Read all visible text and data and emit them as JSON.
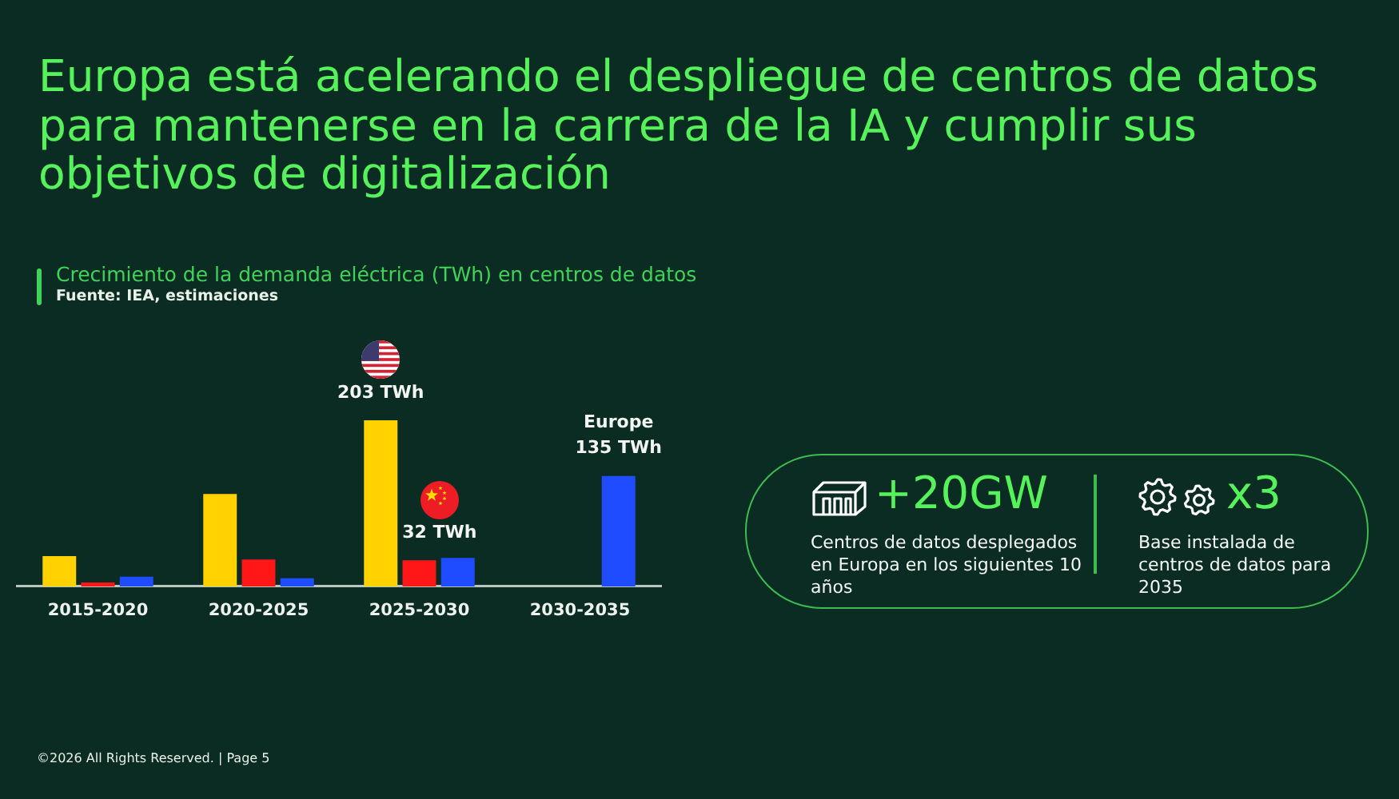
{
  "chart_data": {
    "type": "bar",
    "title": "Europa está acelerando el despliegue de centros de datos para mantenerse en la carrera de la IA y cumplir sus objetivos de digitalización",
    "subtitle": "Crecimiento de la demanda eléctrica (TWh) en centros de datos",
    "annotations": [
      "Fuente: IEA, estimaciones",
      "+20GW",
      "Centros de datos desplegados en Europa en los siguientes 10 años",
      "x3",
      "Base instalada de centros de datos para 2035",
      "©2026 All Rights Reserved. | Page 5"
    ],
    "categories": [
      "2015-2020",
      "2020-2025",
      "2025-2030",
      "2030-2035"
    ],
    "series": [
      {
        "color": "#ffd200",
        "values": [
          37,
          113,
          203,
          null
        ],
        "value_labels": [
          null,
          null,
          "203 TWh",
          null
        ]
      },
      {
        "color": "#ff1616",
        "values": [
          5,
          33,
          32,
          null
        ],
        "value_labels": [
          null,
          null,
          "32 TWh",
          null
        ]
      },
      {
        "name": "Europe",
        "color": "#1f4cff",
        "values": [
          12,
          10,
          35,
          135
        ],
        "value_labels": [
          null,
          null,
          null,
          "135 TWh"
        ]
      }
    ],
    "tick_labels": "x",
    "legend": false
  }
}
